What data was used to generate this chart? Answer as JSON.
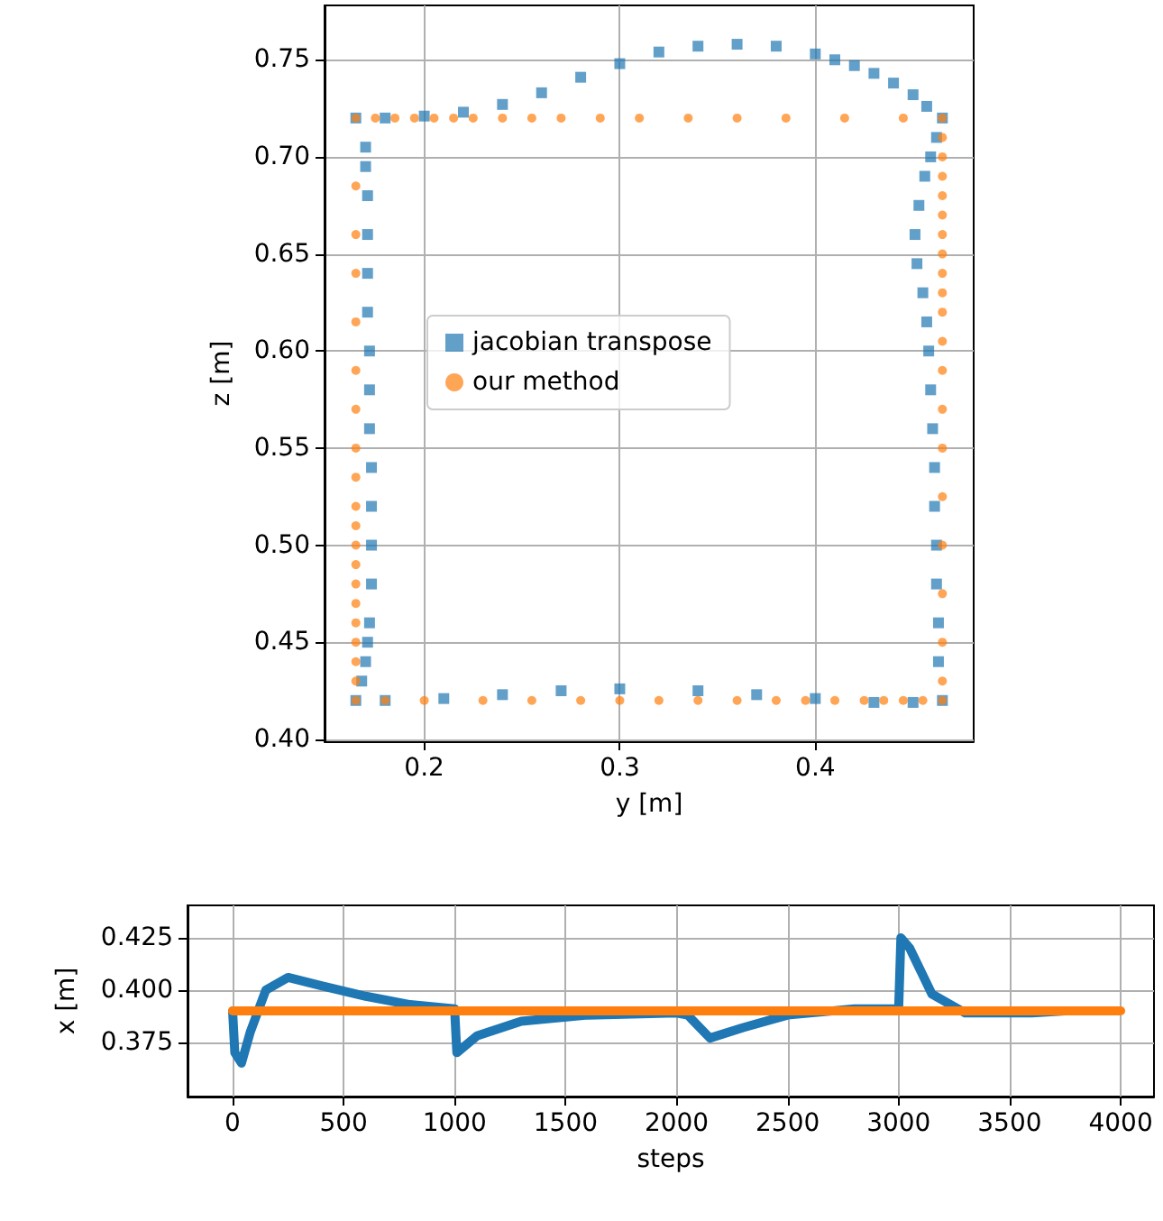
{
  "chart_data": [
    {
      "type": "scatter",
      "xlabel": "y [m]",
      "ylabel": "z [m]",
      "xlim": [
        0.149,
        0.481
      ],
      "ylim": [
        0.399,
        0.778
      ],
      "xticks": [
        0.2,
        0.3,
        0.4
      ],
      "yticks": [
        {
          "value": 0.4,
          "label": "0.40"
        },
        0.45,
        {
          "value": 0.5,
          "label": "0.50"
        },
        0.55,
        {
          "value": 0.6,
          "label": "0.60"
        },
        0.65,
        {
          "value": 0.7,
          "label": "0.70"
        },
        0.75
      ],
      "grid": true,
      "legend": "center",
      "series": [
        {
          "name": "jacobian transpose",
          "color": "#1f77b4",
          "marker": "square",
          "x": [
            0.165,
            0.168,
            0.17,
            0.171,
            0.172,
            0.173,
            0.173,
            0.173,
            0.173,
            0.172,
            0.172,
            0.172,
            0.171,
            0.171,
            0.171,
            0.171,
            0.17,
            0.17,
            0.165,
            0.18,
            0.2,
            0.22,
            0.24,
            0.26,
            0.28,
            0.3,
            0.32,
            0.34,
            0.36,
            0.38,
            0.4,
            0.41,
            0.42,
            0.43,
            0.44,
            0.45,
            0.457,
            0.465,
            0.462,
            0.459,
            0.456,
            0.453,
            0.451,
            0.452,
            0.455,
            0.457,
            0.458,
            0.459,
            0.46,
            0.461,
            0.461,
            0.462,
            0.462,
            0.463,
            0.463,
            0.465,
            0.45,
            0.43,
            0.4,
            0.37,
            0.34,
            0.3,
            0.27,
            0.24,
            0.21,
            0.18
          ],
          "values": [
            0.42,
            0.43,
            0.44,
            0.45,
            0.46,
            0.48,
            0.5,
            0.52,
            0.54,
            0.56,
            0.58,
            0.6,
            0.62,
            0.64,
            0.66,
            0.68,
            0.695,
            0.705,
            0.72,
            0.72,
            0.721,
            0.723,
            0.727,
            0.733,
            0.741,
            0.748,
            0.754,
            0.757,
            0.758,
            0.757,
            0.753,
            0.75,
            0.747,
            0.743,
            0.738,
            0.732,
            0.726,
            0.72,
            0.71,
            0.7,
            0.69,
            0.675,
            0.66,
            0.645,
            0.63,
            0.615,
            0.6,
            0.58,
            0.56,
            0.54,
            0.52,
            0.5,
            0.48,
            0.46,
            0.44,
            0.42,
            0.419,
            0.419,
            0.421,
            0.423,
            0.425,
            0.426,
            0.425,
            0.423,
            0.421,
            0.42
          ]
        },
        {
          "name": "our method",
          "color": "#ff7f0e",
          "marker": "circle",
          "x": [
            0.165,
            0.175,
            0.185,
            0.195,
            0.205,
            0.215,
            0.225,
            0.24,
            0.255,
            0.27,
            0.29,
            0.31,
            0.335,
            0.36,
            0.385,
            0.415,
            0.445,
            0.465,
            0.465,
            0.465,
            0.465,
            0.465,
            0.465,
            0.465,
            0.465,
            0.465,
            0.465,
            0.465,
            0.465,
            0.465,
            0.465,
            0.465,
            0.465,
            0.465,
            0.465,
            0.465,
            0.465,
            0.465,
            0.455,
            0.445,
            0.435,
            0.425,
            0.41,
            0.395,
            0.38,
            0.36,
            0.34,
            0.32,
            0.3,
            0.28,
            0.255,
            0.23,
            0.2,
            0.18,
            0.165,
            0.165,
            0.165,
            0.165,
            0.165,
            0.165,
            0.165,
            0.165,
            0.165,
            0.165,
            0.165,
            0.165,
            0.165,
            0.165,
            0.165,
            0.165,
            0.165,
            0.165,
            0.165
          ],
          "values": [
            0.72,
            0.72,
            0.72,
            0.72,
            0.72,
            0.72,
            0.72,
            0.72,
            0.72,
            0.72,
            0.72,
            0.72,
            0.72,
            0.72,
            0.72,
            0.72,
            0.72,
            0.72,
            0.71,
            0.7,
            0.69,
            0.68,
            0.67,
            0.66,
            0.65,
            0.64,
            0.63,
            0.62,
            0.605,
            0.59,
            0.57,
            0.55,
            0.525,
            0.5,
            0.475,
            0.45,
            0.43,
            0.42,
            0.42,
            0.42,
            0.42,
            0.42,
            0.42,
            0.42,
            0.42,
            0.42,
            0.42,
            0.42,
            0.42,
            0.42,
            0.42,
            0.42,
            0.42,
            0.42,
            0.42,
            0.43,
            0.44,
            0.45,
            0.46,
            0.47,
            0.48,
            0.49,
            0.5,
            0.51,
            0.52,
            0.535,
            0.55,
            0.57,
            0.59,
            0.615,
            0.64,
            0.66,
            0.685
          ]
        }
      ]
    },
    {
      "type": "line",
      "xlabel": "steps",
      "ylabel": "x [m]",
      "xlim": [
        -203,
        4150
      ],
      "ylim": [
        0.349,
        0.4405
      ],
      "xticks": [
        0,
        500,
        1000,
        1500,
        2000,
        2500,
        3000,
        3500,
        4000
      ],
      "yticks": [
        0.375,
        {
          "value": 0.4,
          "label": "0.400"
        },
        0.425
      ],
      "grid": true,
      "marker": "none",
      "series": [
        {
          "color": "#1f77b4",
          "x": [
            0,
            10,
            40,
            80,
            150,
            250,
            400,
            600,
            800,
            1000,
            1005,
            1010,
            1100,
            1300,
            1600,
            2000,
            2050,
            2150,
            2300,
            2500,
            2800,
            3000,
            3005,
            3010,
            3050,
            3150,
            3300,
            3600,
            3750
          ],
          "values": [
            0.39,
            0.37,
            0.365,
            0.38,
            0.4,
            0.406,
            0.402,
            0.397,
            0.393,
            0.391,
            0.391,
            0.37,
            0.378,
            0.385,
            0.388,
            0.389,
            0.388,
            0.377,
            0.382,
            0.388,
            0.391,
            0.391,
            0.391,
            0.425,
            0.42,
            0.398,
            0.389,
            0.389,
            0.39
          ]
        },
        {
          "color": "#ff7f0e",
          "x": [
            0,
            4000
          ],
          "values": [
            0.39,
            0.39
          ]
        }
      ]
    }
  ]
}
